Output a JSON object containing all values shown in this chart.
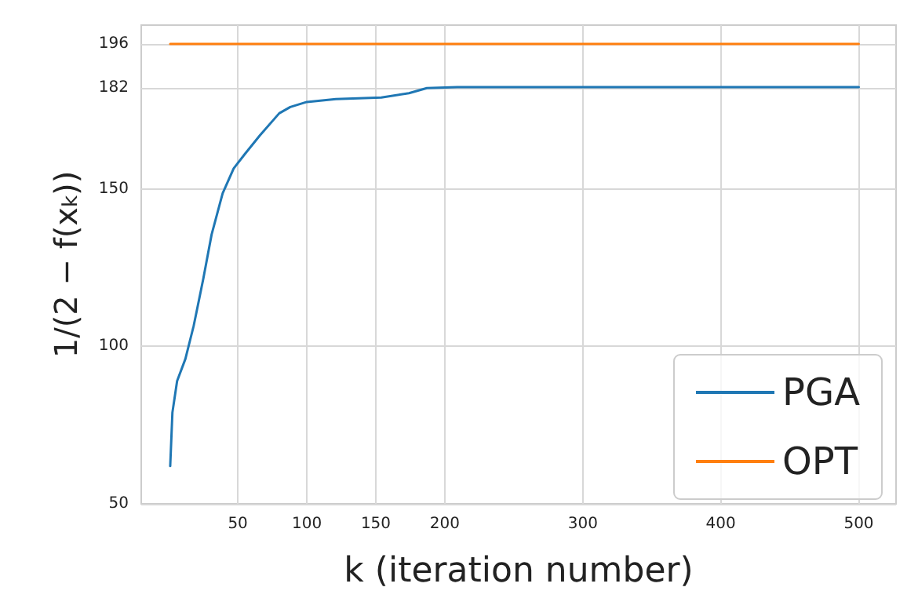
{
  "chart_data": {
    "type": "line",
    "xlabel": "k (iteration number)",
    "ylabel": "1/(2 − f(x$_{k}$))",
    "xlim": [
      -20,
      527
    ],
    "ylim": [
      50,
      202
    ],
    "xticks": [
      50,
      100,
      150,
      200,
      300,
      400,
      500
    ],
    "yticks": [
      50,
      100,
      150,
      182,
      196
    ],
    "grid": true,
    "legend": "bottom right",
    "marker": "none",
    "line_style": "solid",
    "series": [
      {
        "name": "PGA",
        "color": "#1f77b4",
        "x": [
          1,
          2.6,
          6,
          12,
          18,
          25,
          31,
          39,
          47,
          55,
          66,
          80,
          88,
          100,
          121,
          154,
          174,
          187,
          209,
          500
        ],
        "values": [
          62,
          79,
          89,
          96,
          106.5,
          121.5,
          135.5,
          148.6,
          156.5,
          161,
          167,
          174,
          176,
          177.6,
          178.5,
          179,
          180.4,
          182,
          182.3,
          182.3
        ]
      },
      {
        "name": "OPT",
        "color": "#ff7f0e",
        "x": [
          1,
          500
        ],
        "values": [
          196,
          196
        ]
      }
    ]
  }
}
